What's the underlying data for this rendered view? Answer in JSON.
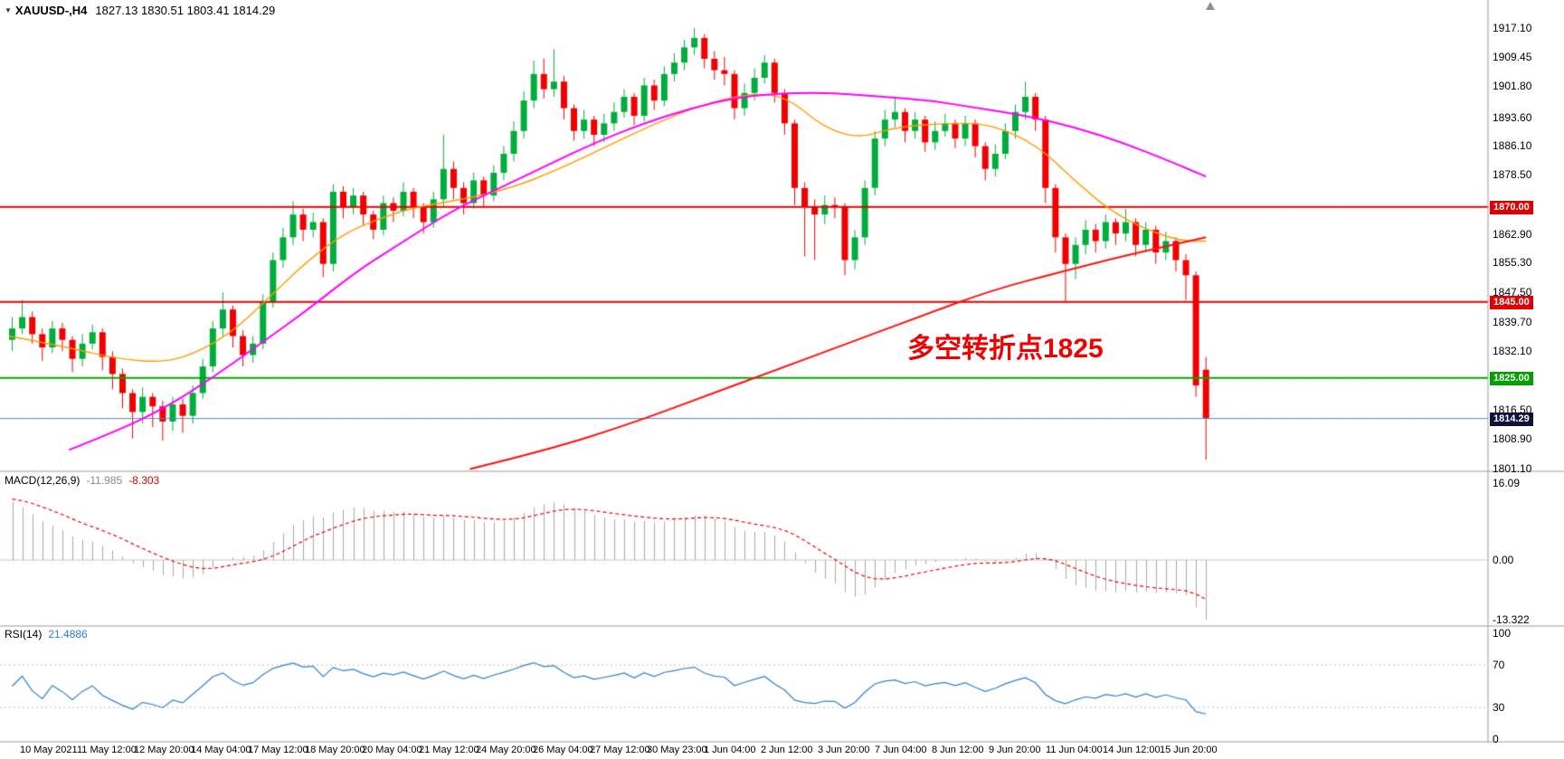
{
  "header": {
    "collapse_icon": "▼",
    "symbol_period": "XAUUSD-,H4",
    "ohlc": "1827.13 1830.51 1803.41 1814.29"
  },
  "annotation": {
    "text": "多空转折点1825",
    "color": "#f00000"
  },
  "macd_panel": {
    "label": "MACD(12,26,9)",
    "main": "-11.985",
    "signal": "-8.303",
    "axis": [
      "16.09",
      "0.00",
      "-13.322"
    ]
  },
  "rsi_panel": {
    "label": "RSI(14)",
    "value": "21.4886",
    "axis": [
      "100",
      "70",
      "30",
      "0"
    ]
  },
  "price_axis": {
    "ticks": [
      1917.1,
      1909.45,
      1901.8,
      1893.6,
      1886.1,
      1878.5,
      1862.9,
      1855.3,
      1847.5,
      1839.7,
      1832.1,
      1816.5,
      1808.9,
      1801.1
    ],
    "tagged": [
      {
        "price": 1870.0,
        "label": "1870.00",
        "bg": "#e00000"
      },
      {
        "price": 1845.0,
        "label": "1845.00",
        "bg": "#e00000"
      },
      {
        "price": 1825.0,
        "label": "1825.00",
        "bg": "#00a000"
      },
      {
        "price": 1814.29,
        "label": "1814.29",
        "bg": "#10103a"
      }
    ]
  },
  "colors": {
    "bull": "#00ad3c",
    "bear": "#f20000",
    "separator": "#9b9b9b"
  },
  "chart_data": [
    {
      "type": "candlestick",
      "title": "XAUUSD- H4",
      "ylim": [
        1801.1,
        1917.1
      ],
      "current_bar": {
        "open": 1827.13,
        "high": 1830.51,
        "low": 1803.41,
        "close": 1814.29
      },
      "hlines": [
        {
          "price": 1870.0,
          "color": "#e60000",
          "width": 2,
          "role": "resistance"
        },
        {
          "price": 1845.0,
          "color": "#e60000",
          "width": 2,
          "role": "support"
        },
        {
          "price": 1825.0,
          "color": "#00a800",
          "width": 2,
          "role": "pivot"
        },
        {
          "price": 1814.29,
          "color": "#5b87b5",
          "width": 1,
          "role": "last-price"
        }
      ],
      "overlays": [
        {
          "name": "ma-fast",
          "color": "#ff9b00",
          "width": 1.4,
          "points": [
            [
              0.0,
              1836
            ],
            [
              0.05,
              1833
            ],
            [
              0.09,
              1830
            ],
            [
              0.13,
              1829
            ],
            [
              0.16,
              1832
            ],
            [
              0.19,
              1838
            ],
            [
              0.22,
              1847
            ],
            [
              0.25,
              1856
            ],
            [
              0.28,
              1863
            ],
            [
              0.31,
              1867
            ],
            [
              0.34,
              1870
            ],
            [
              0.38,
              1872
            ],
            [
              0.42,
              1875
            ],
            [
              0.46,
              1880
            ],
            [
              0.5,
              1886
            ],
            [
              0.54,
              1892
            ],
            [
              0.58,
              1897
            ],
            [
              0.62,
              1900
            ],
            [
              0.65,
              1899
            ],
            [
              0.68,
              1891
            ],
            [
              0.71,
              1888
            ],
            [
              0.74,
              1891
            ],
            [
              0.78,
              1892
            ],
            [
              0.82,
              1892
            ],
            [
              0.86,
              1886
            ],
            [
              0.89,
              1877
            ],
            [
              0.92,
              1869
            ],
            [
              0.95,
              1864
            ],
            [
              0.98,
              1861
            ],
            [
              1.0,
              1861
            ]
          ]
        },
        {
          "name": "ma-medium",
          "color": "#ff00ff",
          "width": 2,
          "points": [
            [
              0.05,
              1806
            ],
            [
              0.09,
              1811
            ],
            [
              0.13,
              1817
            ],
            [
              0.17,
              1825
            ],
            [
              0.21,
              1834
            ],
            [
              0.25,
              1843
            ],
            [
              0.29,
              1853
            ],
            [
              0.33,
              1861
            ],
            [
              0.37,
              1869
            ],
            [
              0.41,
              1875
            ],
            [
              0.45,
              1881
            ],
            [
              0.49,
              1887
            ],
            [
              0.53,
              1892
            ],
            [
              0.57,
              1896
            ],
            [
              0.61,
              1899
            ],
            [
              0.65,
              1900
            ],
            [
              0.69,
              1900
            ],
            [
              0.73,
              1899
            ],
            [
              0.77,
              1898
            ],
            [
              0.81,
              1896
            ],
            [
              0.85,
              1894
            ],
            [
              0.89,
              1891
            ],
            [
              0.93,
              1887
            ],
            [
              0.97,
              1882
            ],
            [
              1.0,
              1878
            ]
          ]
        },
        {
          "name": "ma-slow",
          "color": "#ff1010",
          "width": 2,
          "points": [
            [
              0.385,
              1801
            ],
            [
              0.45,
              1806
            ],
            [
              0.52,
              1813
            ],
            [
              0.58,
              1820
            ],
            [
              0.64,
              1827
            ],
            [
              0.7,
              1834
            ],
            [
              0.76,
              1841
            ],
            [
              0.82,
              1848
            ],
            [
              0.88,
              1853
            ],
            [
              0.93,
              1857
            ],
            [
              1.0,
              1862
            ]
          ]
        }
      ],
      "candles": [
        [
          1835,
          1841,
          1832,
          1838
        ],
        [
          1838,
          1845.5,
          1836.5,
          1841
        ],
        [
          1841,
          1842.5,
          1834,
          1836.5
        ],
        [
          1836.5,
          1838,
          1829.5,
          1833
        ],
        [
          1833,
          1840,
          1831.5,
          1838
        ],
        [
          1838,
          1839.5,
          1832,
          1835
        ],
        [
          1835,
          1836,
          1826.5,
          1830
        ],
        [
          1830,
          1836.5,
          1828,
          1834
        ],
        [
          1834,
          1839,
          1832.5,
          1837
        ],
        [
          1837,
          1838,
          1827,
          1830.5
        ],
        [
          1830.5,
          1832,
          1822,
          1826
        ],
        [
          1826,
          1827.5,
          1817,
          1821
        ],
        [
          1821,
          1822,
          1809,
          1816
        ],
        [
          1816,
          1822.5,
          1813,
          1820
        ],
        [
          1820,
          1821,
          1812,
          1817.5
        ],
        [
          1817.5,
          1819,
          1808.5,
          1813.5
        ],
        [
          1813.5,
          1820,
          1811,
          1818
        ],
        [
          1818,
          1819.5,
          1810.5,
          1815
        ],
        [
          1815,
          1823,
          1813,
          1821
        ],
        [
          1821,
          1830,
          1819.5,
          1828
        ],
        [
          1828,
          1840,
          1826.5,
          1838
        ],
        [
          1838,
          1847.5,
          1836,
          1843
        ],
        [
          1843,
          1844,
          1833,
          1836
        ],
        [
          1836,
          1837.5,
          1828,
          1831
        ],
        [
          1831,
          1836,
          1829,
          1834
        ],
        [
          1834,
          1847,
          1832.5,
          1845
        ],
        [
          1845,
          1858,
          1843.5,
          1856
        ],
        [
          1856,
          1864.5,
          1854,
          1862
        ],
        [
          1862,
          1871.5,
          1860,
          1868
        ],
        [
          1868,
          1869.5,
          1861,
          1864
        ],
        [
          1864,
          1868.5,
          1862,
          1866
        ],
        [
          1866,
          1867,
          1851.5,
          1855
        ],
        [
          1855,
          1876,
          1853,
          1874
        ],
        [
          1874,
          1875.5,
          1867,
          1870
        ],
        [
          1870,
          1875,
          1868,
          1873
        ],
        [
          1873,
          1874,
          1865,
          1868
        ],
        [
          1868,
          1869,
          1861.5,
          1864
        ],
        [
          1864,
          1873,
          1862.5,
          1871
        ],
        [
          1871,
          1872.5,
          1866,
          1869
        ],
        [
          1869,
          1876.5,
          1867.5,
          1874
        ],
        [
          1874,
          1875,
          1867,
          1870
        ],
        [
          1870,
          1871,
          1863,
          1866
        ],
        [
          1866,
          1874,
          1864.5,
          1872
        ],
        [
          1872,
          1889,
          1870,
          1880
        ],
        [
          1880,
          1882,
          1872,
          1875
        ],
        [
          1875,
          1876.5,
          1868,
          1871
        ],
        [
          1871,
          1879,
          1869.5,
          1877
        ],
        [
          1877,
          1878,
          1870,
          1873
        ],
        [
          1873,
          1881,
          1871.5,
          1879
        ],
        [
          1879,
          1886,
          1877,
          1884
        ],
        [
          1884,
          1892.5,
          1882,
          1890
        ],
        [
          1890,
          1900.5,
          1888,
          1898
        ],
        [
          1898,
          1908.5,
          1896,
          1905
        ],
        [
          1905,
          1909,
          1898.5,
          1901
        ],
        [
          1901,
          1911.5,
          1899,
          1903
        ],
        [
          1903,
          1904.5,
          1893,
          1896
        ],
        [
          1896,
          1897,
          1887.5,
          1890
        ],
        [
          1890,
          1895.5,
          1888,
          1893
        ],
        [
          1893,
          1894,
          1886,
          1889
        ],
        [
          1889,
          1894.5,
          1887,
          1892
        ],
        [
          1892,
          1897.5,
          1890,
          1895
        ],
        [
          1895,
          1901,
          1893.5,
          1899
        ],
        [
          1899,
          1900,
          1891.5,
          1894
        ],
        [
          1894,
          1904,
          1892.5,
          1902
        ],
        [
          1902,
          1903.5,
          1895.5,
          1898
        ],
        [
          1898,
          1907,
          1896.5,
          1905
        ],
        [
          1905,
          1910.5,
          1903,
          1908
        ],
        [
          1908,
          1914,
          1906,
          1912
        ],
        [
          1912,
          1917.1,
          1910,
          1914.5
        ],
        [
          1914.5,
          1915.5,
          1906.5,
          1909
        ],
        [
          1909,
          1911,
          1903.5,
          1906
        ],
        [
          1906,
          1909.5,
          1902,
          1905
        ],
        [
          1905,
          1906,
          1893,
          1896
        ],
        [
          1896,
          1902.5,
          1894,
          1900
        ],
        [
          1900,
          1906.5,
          1898,
          1904
        ],
        [
          1904,
          1910,
          1902.5,
          1908
        ],
        [
          1908,
          1909,
          1897.5,
          1900
        ],
        [
          1900,
          1901,
          1889,
          1892
        ],
        [
          1892,
          1893,
          1870.5,
          1875
        ],
        [
          1875,
          1876.5,
          1857,
          1870
        ],
        [
          1870,
          1872,
          1856,
          1868
        ],
        [
          1868,
          1873,
          1865.5,
          1870.5
        ],
        [
          1870.5,
          1872.5,
          1867,
          1870
        ],
        [
          1870,
          1871,
          1852,
          1856
        ],
        [
          1856,
          1864,
          1853.5,
          1862
        ],
        [
          1862,
          1877,
          1860,
          1875
        ],
        [
          1875,
          1890,
          1873,
          1888
        ],
        [
          1888,
          1895.5,
          1886,
          1893
        ],
        [
          1893,
          1898.5,
          1891,
          1895
        ],
        [
          1895,
          1896,
          1887,
          1890
        ],
        [
          1890,
          1895,
          1888,
          1893
        ],
        [
          1893,
          1894,
          1884.5,
          1887
        ],
        [
          1887,
          1892.5,
          1885,
          1890
        ],
        [
          1890,
          1894.5,
          1888.5,
          1892
        ],
        [
          1892,
          1893,
          1885.5,
          1888
        ],
        [
          1888,
          1894,
          1886,
          1892
        ],
        [
          1892,
          1893,
          1883,
          1886
        ],
        [
          1886,
          1887,
          1877,
          1880
        ],
        [
          1880,
          1886.5,
          1878,
          1884
        ],
        [
          1884,
          1892,
          1882.5,
          1890
        ],
        [
          1890,
          1897,
          1888,
          1895
        ],
        [
          1895,
          1903,
          1893,
          1899
        ],
        [
          1899,
          1900,
          1890,
          1893
        ],
        [
          1893,
          1894,
          1871,
          1875
        ],
        [
          1875,
          1876,
          1858,
          1862
        ],
        [
          1862,
          1863,
          1845,
          1855
        ],
        [
          1855,
          1862,
          1851,
          1860
        ],
        [
          1860,
          1866.5,
          1857.5,
          1864
        ],
        [
          1864,
          1865.5,
          1858,
          1861
        ],
        [
          1861,
          1868,
          1859,
          1866
        ],
        [
          1866,
          1867,
          1860,
          1863
        ],
        [
          1863,
          1869.5,
          1861,
          1866
        ],
        [
          1866,
          1867,
          1857,
          1860
        ],
        [
          1860,
          1866,
          1858,
          1864
        ],
        [
          1864,
          1865,
          1855,
          1858
        ],
        [
          1858,
          1863.5,
          1856,
          1861
        ],
        [
          1861,
          1862,
          1853,
          1856
        ],
        [
          1856,
          1857.5,
          1845.5,
          1852
        ],
        [
          1852,
          1853,
          1820,
          1823
        ],
        [
          1827.13,
          1830.51,
          1803.41,
          1814.29
        ]
      ],
      "x_labels": [
        "10 May 2021",
        "11 May 12:00",
        "12 May 20:00",
        "14 May 04:00",
        "17 May 12:00",
        "18 May 20:00",
        "20 May 04:00",
        "21 May 12:00",
        "24 May 20:00",
        "26 May 04:00",
        "27 May 12:00",
        "30 May 23:00",
        "1 Jun 04:00",
        "2 Jun 12:00",
        "3 Jun 20:00",
        "7 Jun 04:00",
        "8 Jun 12:00",
        "9 Jun 20:00",
        "11 Jun 04:00",
        "14 Jun 12:00",
        "15 Jun 20:00"
      ]
    },
    {
      "type": "line",
      "name": "MACD",
      "params": [
        12,
        26,
        9
      ],
      "source": "derived from candle closes",
      "last_values": {
        "macd": -11.985,
        "signal": -8.303
      },
      "ylim": [
        -13.322,
        16.09
      ],
      "histogram_color": "#a8a8a8",
      "signal_color": "#f00000"
    },
    {
      "type": "line",
      "name": "RSI",
      "params": [
        14
      ],
      "source": "derived from candle closes",
      "last_value": 21.4886,
      "ylim": [
        0,
        100
      ],
      "levels": [
        70,
        30
      ],
      "line_color": "#2f80d0"
    }
  ]
}
